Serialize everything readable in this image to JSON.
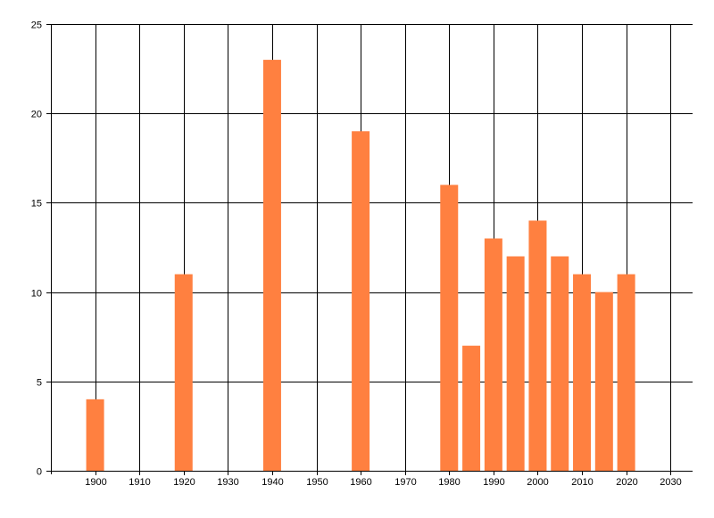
{
  "chart_data": {
    "type": "bar",
    "title": "",
    "xlabel": "",
    "ylabel": "",
    "x": [
      1900,
      1920,
      1940,
      1960,
      1980,
      1985,
      1990,
      1995,
      2000,
      2005,
      2010,
      2015,
      2020
    ],
    "values": [
      4,
      11,
      23,
      19,
      16,
      7,
      13,
      12,
      14,
      12,
      11,
      10,
      11
    ],
    "xlim": [
      1890,
      2035
    ],
    "ylim": [
      0,
      25
    ],
    "x_ticks": [
      1900,
      1910,
      1920,
      1930,
      1940,
      1950,
      1960,
      1970,
      1980,
      1990,
      2000,
      2010,
      2020,
      2030
    ],
    "y_ticks": [
      0,
      5,
      10,
      15,
      20,
      25
    ],
    "grid": true,
    "legend": "none",
    "colors": {
      "bar": "#ff8040",
      "grid": "#000000",
      "axis": "#000000",
      "background": "#ffffff"
    }
  }
}
